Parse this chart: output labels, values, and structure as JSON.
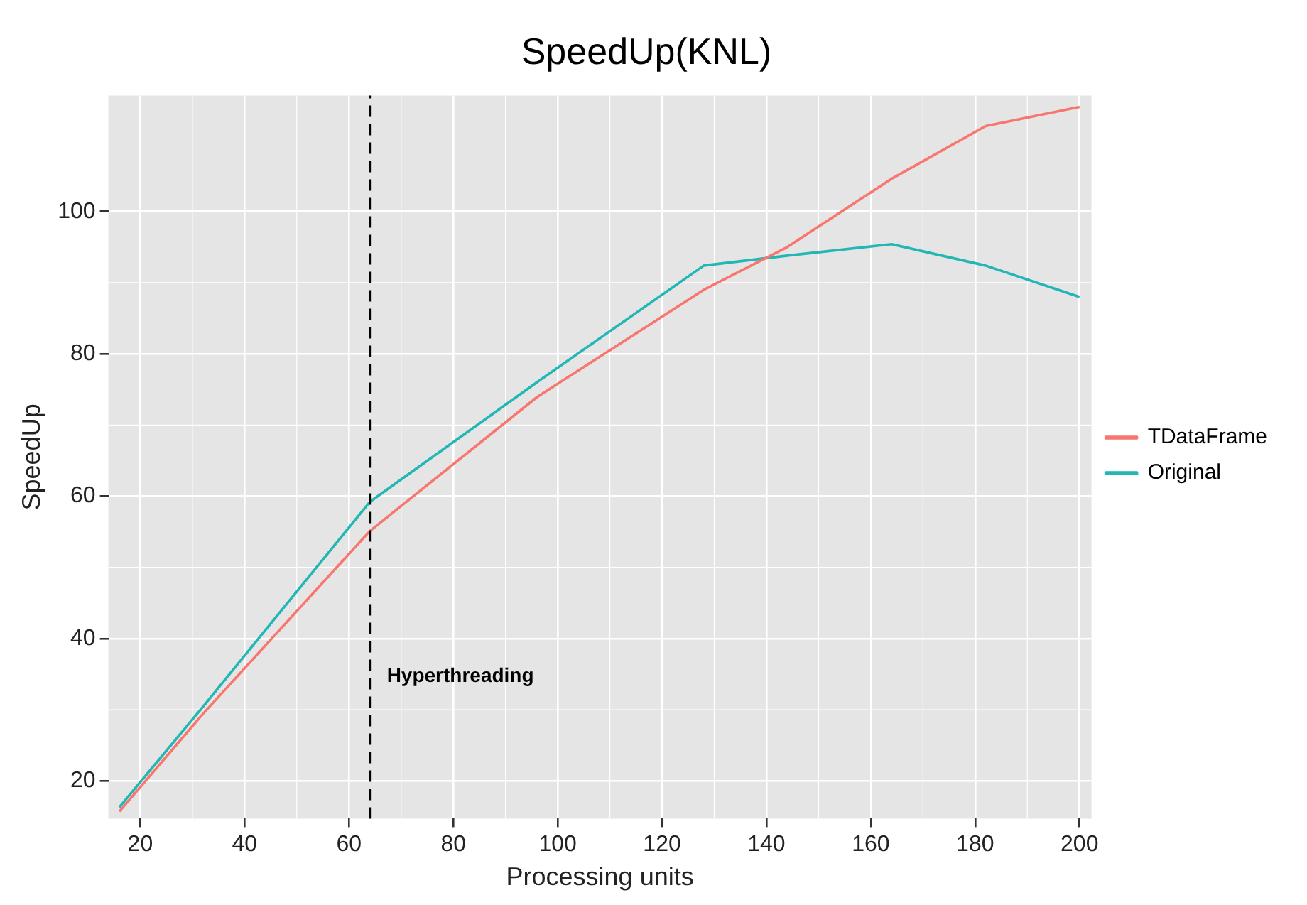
{
  "chart_data": {
    "type": "line",
    "title": "SpeedUp(KNL)",
    "xlabel": "Processing units",
    "ylabel": "SpeedUp",
    "x": [
      16,
      32,
      64,
      96,
      128,
      144,
      164,
      182,
      200
    ],
    "series": [
      {
        "name": "TDataFrame",
        "color": "#f8766d",
        "values": [
          15.7,
          29.4,
          55.1,
          73.9,
          89.0,
          95.0,
          104.6,
          112.0,
          114.7
        ]
      },
      {
        "name": "Original",
        "color": "#22b6b4",
        "values": [
          16.3,
          30.4,
          59.2,
          76.0,
          92.4,
          93.8,
          95.4,
          92.4,
          88.0
        ]
      }
    ],
    "xlim": [
      13.9,
      202.3
    ],
    "ylim": [
      14.7,
      116.3
    ],
    "xticks": [
      20,
      40,
      60,
      80,
      100,
      120,
      140,
      160,
      180,
      200
    ],
    "yticks": [
      20,
      40,
      60,
      80,
      100
    ],
    "ref_lines": [
      {
        "axis": "x",
        "value": 64,
        "line_style": "dashed",
        "color": "#000000"
      }
    ],
    "annotations": [
      "Hyperthreading"
    ],
    "grid": true,
    "legend": "right",
    "marker": "none",
    "line_style": "solid"
  }
}
